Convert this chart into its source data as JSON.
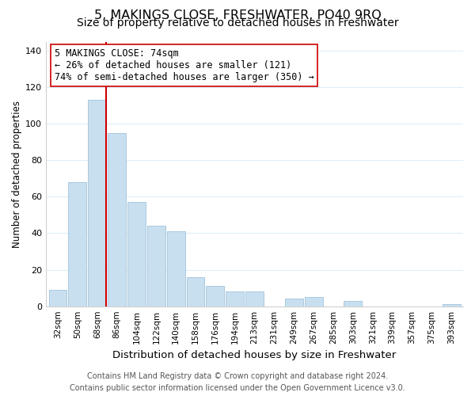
{
  "title": "5, MAKINGS CLOSE, FRESHWATER, PO40 9RQ",
  "subtitle": "Size of property relative to detached houses in Freshwater",
  "xlabel": "Distribution of detached houses by size in Freshwater",
  "ylabel": "Number of detached properties",
  "bar_labels": [
    "32sqm",
    "50sqm",
    "68sqm",
    "86sqm",
    "104sqm",
    "122sqm",
    "140sqm",
    "158sqm",
    "176sqm",
    "194sqm",
    "213sqm",
    "231sqm",
    "249sqm",
    "267sqm",
    "285sqm",
    "303sqm",
    "321sqm",
    "339sqm",
    "357sqm",
    "375sqm",
    "393sqm"
  ],
  "bar_values": [
    9,
    68,
    113,
    95,
    57,
    44,
    41,
    16,
    11,
    8,
    8,
    0,
    4,
    5,
    0,
    3,
    0,
    0,
    0,
    0,
    1
  ],
  "bar_color": "#c8dff0",
  "bar_edge_color": "#a0c4dc",
  "grid_color": "#ddeef8",
  "vline_color": "#cc0000",
  "annotation_text_line1": "5 MAKINGS CLOSE: 74sqm",
  "annotation_text_line2": "← 26% of detached houses are smaller (121)",
  "annotation_text_line3": "74% of semi-detached houses are larger (350) →",
  "ylim": [
    0,
    145
  ],
  "yticks": [
    0,
    20,
    40,
    60,
    80,
    100,
    120,
    140
  ],
  "footer_line1": "Contains HM Land Registry data © Crown copyright and database right 2024.",
  "footer_line2": "Contains public sector information licensed under the Open Government Licence v3.0.",
  "title_fontsize": 11.5,
  "subtitle_fontsize": 10,
  "xlabel_fontsize": 9.5,
  "ylabel_fontsize": 8.5,
  "annotation_fontsize": 8.5,
  "footer_fontsize": 7
}
